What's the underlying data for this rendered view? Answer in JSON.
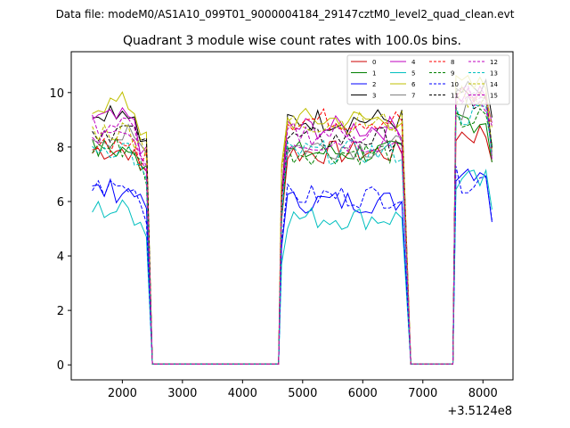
{
  "suptitle": "Data file: modeM0/AS1A10_099T01_9000004184_29147cztM0_level2_quad_clean.evt",
  "chart_data": {
    "type": "line",
    "title": "Quadrant 3 module wise count rates with 100.0s bins.",
    "xlabel": "",
    "ylabel": "",
    "x_offset_label": "+3.5124e8",
    "xlim": [
      1150,
      8500
    ],
    "ylim": [
      -0.55,
      11.5
    ],
    "xticks": [
      2000,
      3000,
      4000,
      5000,
      6000,
      7000,
      8000
    ],
    "yticks": [
      0,
      2,
      4,
      6,
      8,
      10
    ],
    "grid": false,
    "legend_position": "top-right",
    "segments": [
      {
        "x_start": 1500,
        "x_end": 2400,
        "drop_to_zero": 2500
      },
      {
        "x_start": 4650,
        "x_end": 6700,
        "zero_before": 4600,
        "drop_to_zero": 6800
      },
      {
        "x_start": 7550,
        "x_end": 8200,
        "zero_before": 7500
      }
    ],
    "zero_level": 0.03,
    "series": [
      {
        "name": "0",
        "color": "#cc0000",
        "style": "solid",
        "levels": [
          7.9,
          7.8,
          8.5
        ]
      },
      {
        "name": "1",
        "color": "#008000",
        "style": "solid",
        "levels": [
          7.9,
          7.8,
          9.0
        ]
      },
      {
        "name": "2",
        "color": "#0000ff",
        "style": "solid",
        "levels": [
          6.4,
          6.0,
          7.2
        ]
      },
      {
        "name": "3",
        "color": "#000000",
        "style": "solid",
        "levels": [
          9.4,
          9.0,
          10.0
        ]
      },
      {
        "name": "4",
        "color": "#bf00bf",
        "style": "solid",
        "levels": [
          9.0,
          8.7,
          10.0
        ]
      },
      {
        "name": "5",
        "color": "#00bfbf",
        "style": "solid",
        "levels": [
          5.7,
          5.4,
          6.7
        ]
      },
      {
        "name": "6",
        "color": "#bfbf00",
        "style": "solid",
        "levels": [
          9.6,
          9.0,
          10.2
        ]
      },
      {
        "name": "7",
        "color": "#808080",
        "style": "solid",
        "levels": [
          8.4,
          8.0,
          9.5
        ]
      },
      {
        "name": "8",
        "color": "#ff0000",
        "style": "dashed",
        "levels": [
          8.2,
          9.0,
          9.8
        ]
      },
      {
        "name": "9",
        "color": "#008000",
        "style": "dashed",
        "levels": [
          8.0,
          7.8,
          9.0
        ]
      },
      {
        "name": "10",
        "color": "#0000ff",
        "style": "dashed",
        "levels": [
          6.5,
          6.2,
          6.8
        ]
      },
      {
        "name": "11",
        "color": "#000000",
        "style": "dashed",
        "levels": [
          8.6,
          8.3,
          9.7
        ]
      },
      {
        "name": "12",
        "color": "#bf00bf",
        "style": "dashed",
        "levels": [
          8.3,
          8.2,
          9.8
        ]
      },
      {
        "name": "13",
        "color": "#00bfbf",
        "style": "dashed",
        "levels": [
          8.0,
          7.8,
          9.2
        ]
      },
      {
        "name": "14",
        "color": "#bfbf00",
        "style": "dashed",
        "levels": [
          8.6,
          8.9,
          9.9
        ]
      },
      {
        "name": "15",
        "color": "#bf00bf",
        "style": "dashed",
        "levels": [
          8.8,
          8.5,
          9.6
        ]
      }
    ]
  }
}
